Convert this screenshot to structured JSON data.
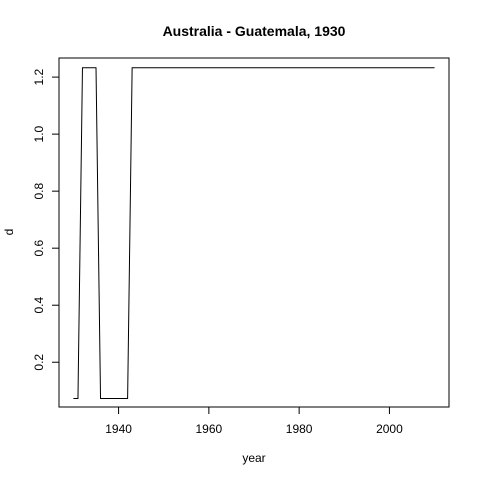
{
  "chart_data": {
    "type": "line",
    "title": "Australia - Guatemala, 1930",
    "xlabel": "year",
    "ylabel": "d",
    "xlim": [
      1926.8,
      2013.2
    ],
    "ylim": [
      0.043,
      1.267
    ],
    "x_ticks": [
      1940,
      1960,
      1980,
      2000
    ],
    "y_ticks": [
      0.2,
      0.4,
      0.6,
      0.8,
      1.0,
      1.2
    ],
    "y_tick_labels": [
      "0.2",
      "0.4",
      "0.6",
      "0.8",
      "1.0",
      "1.2"
    ],
    "grid": false,
    "series": [
      {
        "x": [
          1930,
          1931,
          1932,
          1933,
          1934,
          1935,
          1936,
          1937,
          1938,
          1939,
          1940,
          1941,
          1942,
          1943,
          1944,
          1950,
          1960,
          1970,
          1980,
          1990,
          2000,
          2010
        ],
        "values": [
          0.073,
          0.073,
          1.233,
          1.233,
          1.233,
          1.233,
          0.073,
          0.073,
          0.073,
          0.073,
          0.073,
          0.073,
          0.073,
          1.233,
          1.233,
          1.233,
          1.233,
          1.233,
          1.233,
          1.233,
          1.233,
          1.233
        ]
      }
    ]
  }
}
